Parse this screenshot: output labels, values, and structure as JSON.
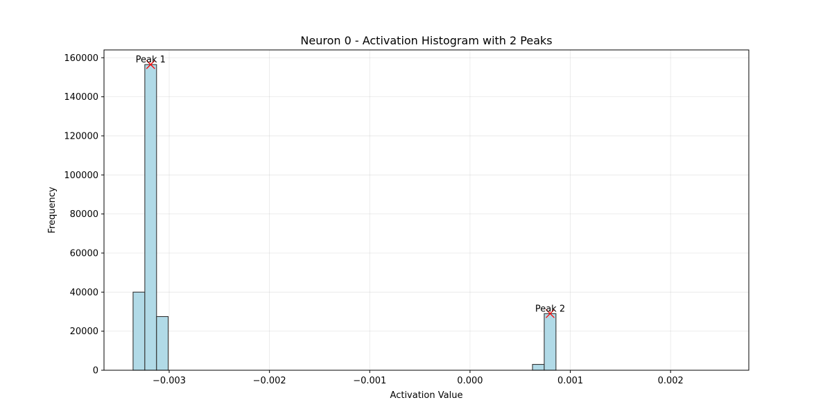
{
  "chart_data": {
    "type": "bar",
    "title": "Neuron 0 - Activation Histogram with 2 Peaks",
    "xlabel": "Activation Value",
    "ylabel": "Frequency",
    "xlim": [
      -0.00365,
      0.00278
    ],
    "ylim": [
      0,
      164000
    ],
    "xticks": [
      -0.003,
      -0.002,
      -0.001,
      0.0,
      0.001,
      0.002
    ],
    "xtick_labels": [
      "−0.003",
      "−0.002",
      "−0.001",
      "0.000",
      "0.001",
      "0.002"
    ],
    "yticks": [
      0,
      20000,
      40000,
      60000,
      80000,
      100000,
      120000,
      140000,
      160000
    ],
    "ytick_labels": [
      "0",
      "20000",
      "40000",
      "60000",
      "80000",
      "100000",
      "120000",
      "140000",
      "160000"
    ],
    "grid": true,
    "bar_color": "#add8e6",
    "bar_edge_color": "#333333",
    "marker_color": "#ff0000",
    "bin_edges": [
      -0.00336,
      -0.003243,
      -0.003126,
      -0.00301,
      0.000623,
      0.00074,
      0.000857
    ],
    "values": [
      40000,
      156500,
      27500,
      0,
      3000,
      29000
    ],
    "peaks": [
      {
        "label": "Peak 1",
        "x": -0.003185,
        "y": 156500
      },
      {
        "label": "Peak 2",
        "x": 0.000799,
        "y": 29000
      }
    ]
  }
}
